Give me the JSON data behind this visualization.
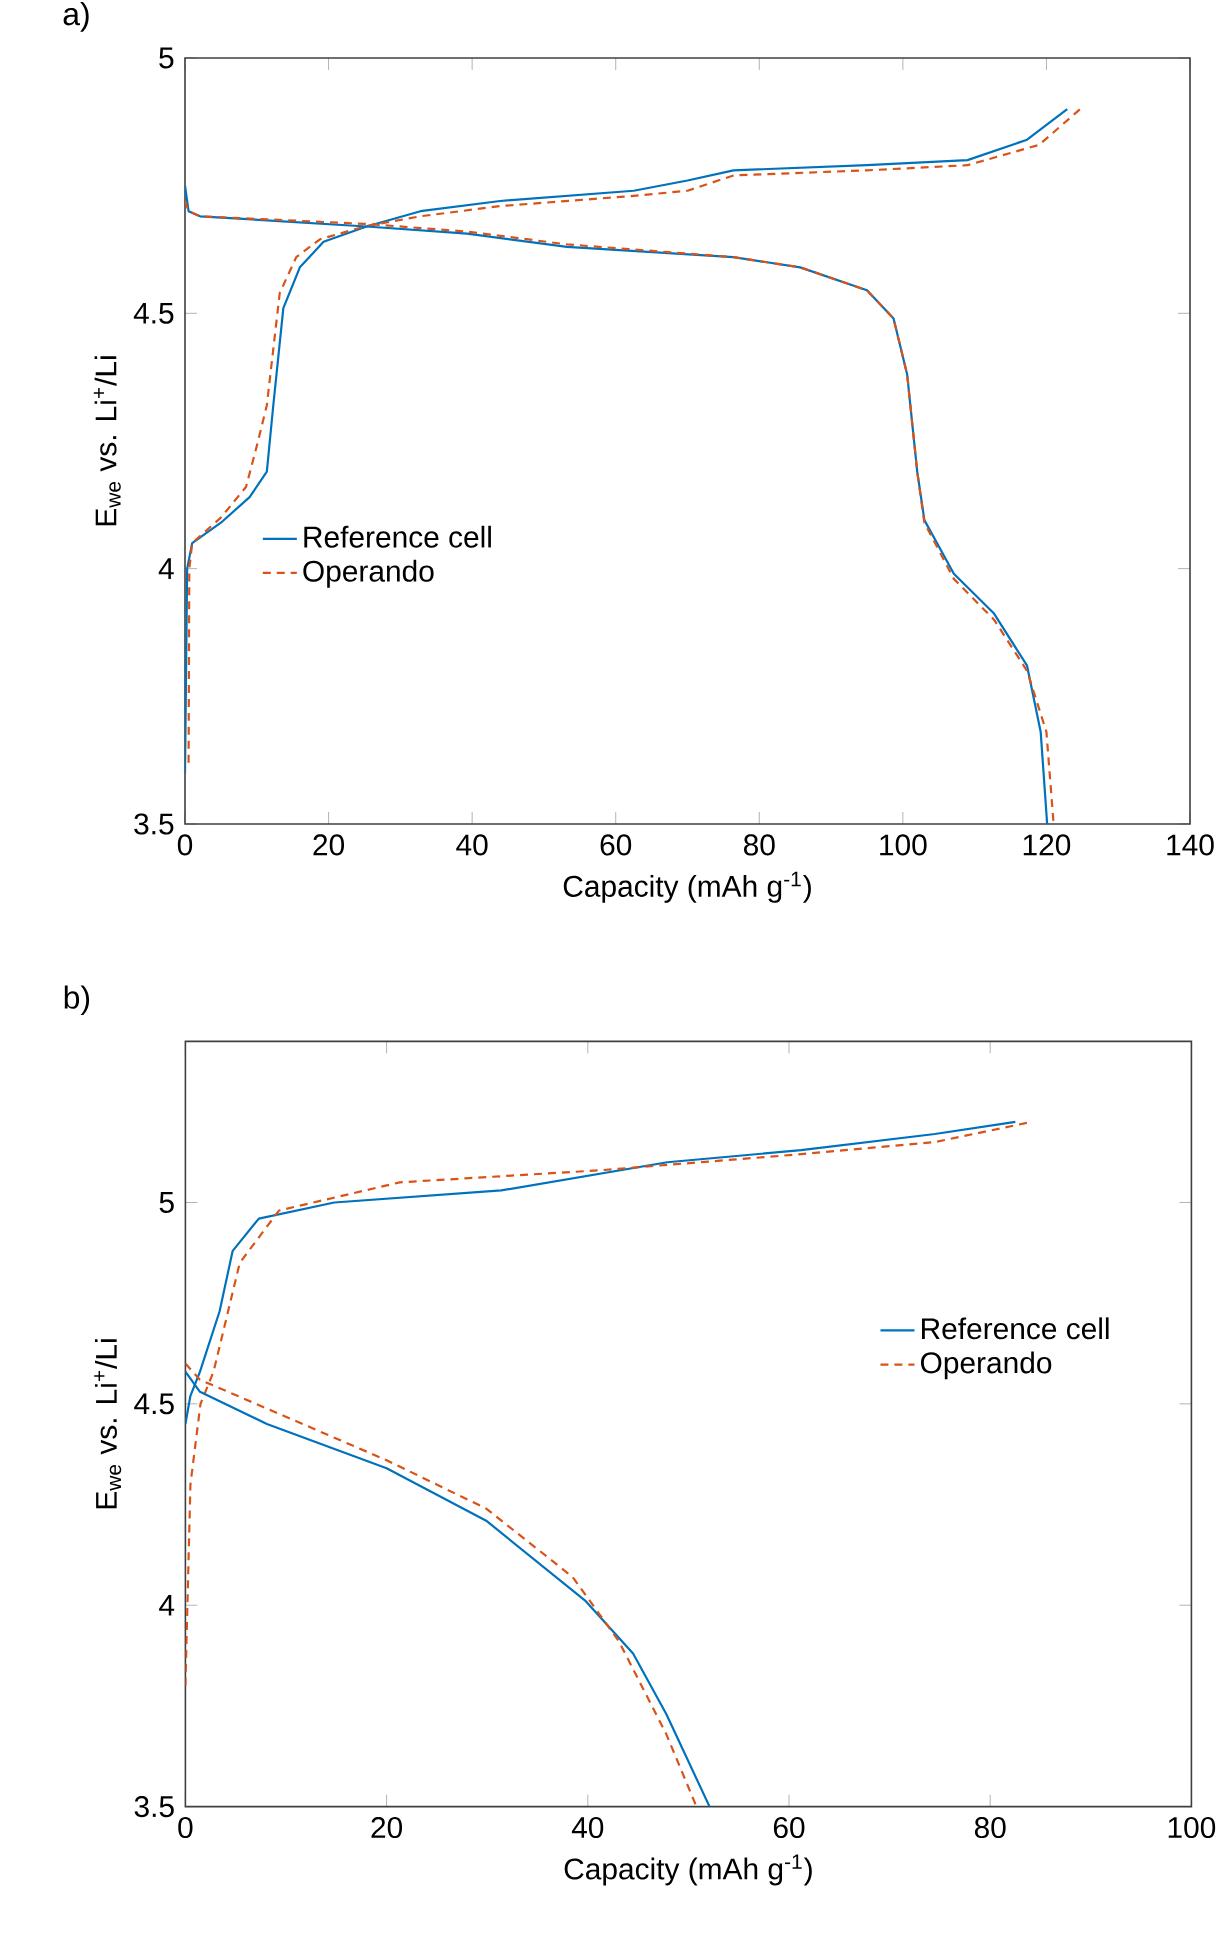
{
  "chart_data": [
    {
      "type": "line",
      "title": "a)",
      "xlabel": "Capacity (mAh g$^{-1}$)",
      "ylabel": "E$_{we}$ vs. Li$^{+}$/Li",
      "xlim": [
        0,
        140
      ],
      "xticks": [
        0,
        20,
        40,
        60,
        80,
        100,
        120,
        140
      ],
      "ylim": [
        3.5,
        5
      ],
      "yticks": [
        3.5,
        4,
        4.5,
        5
      ],
      "legend": "left",
      "grid": false,
      "marker": "none",
      "series": [
        {
          "name": "Reference cell",
          "color": "#0072bd",
          "line_style": "solid",
          "x": [
            0,
            0.3,
            1,
            5,
            9,
            11.4,
            12.3,
            13.7,
            16,
            19.3,
            25.3,
            32.8,
            43.9,
            62.5,
            70,
            76.4,
            95,
            109,
            117.3,
            122.9
          ],
          "values": [
            3.6,
            4.0,
            4.05,
            4.09,
            4.14,
            4.19,
            4.32,
            4.51,
            4.59,
            4.64,
            4.67,
            4.7,
            4.72,
            4.74,
            4.76,
            4.78,
            4.79,
            4.8,
            4.84,
            4.9
          ]
        },
        {
          "name": "Operando",
          "color": "#d95319",
          "line_style": "dashed",
          "x": [
            0.5,
            0.6,
            1,
            5,
            8.5,
            10,
            11.4,
            13.2,
            15.5,
            18.8,
            25,
            32.8,
            43.9,
            62.5,
            70,
            76.4,
            95,
            109,
            119,
            124.7
          ],
          "values": [
            3.62,
            4.0,
            4.05,
            4.1,
            4.16,
            4.24,
            4.32,
            4.54,
            4.61,
            4.645,
            4.67,
            4.69,
            4.71,
            4.73,
            4.74,
            4.77,
            4.78,
            4.79,
            4.83,
            4.9
          ]
        },
        {
          "color": "#0072bd",
          "line_style": "solid",
          "x": [
            0,
            0.5,
            2.1,
            25.3,
            39.3,
            53.2,
            76.4,
            85.7,
            95,
            98.7,
            100.6,
            102,
            103,
            107.1,
            112.7,
            117.3,
            119.2,
            120.1
          ],
          "values": [
            4.75,
            4.7,
            4.69,
            4.67,
            4.656,
            4.63,
            4.61,
            4.59,
            4.545,
            4.49,
            4.38,
            4.19,
            4.095,
            3.99,
            3.912,
            3.81,
            3.68,
            3.5
          ]
        },
        {
          "color": "#d95319",
          "line_style": "dashed",
          "x": [
            0,
            0.5,
            2.1,
            25.3,
            39.3,
            53.2,
            76.4,
            85.7,
            95,
            98.7,
            100.6,
            102,
            103,
            107.1,
            112.7,
            117.3,
            120,
            121
          ],
          "values": [
            4.72,
            4.7,
            4.69,
            4.675,
            4.66,
            4.635,
            4.61,
            4.59,
            4.545,
            4.49,
            4.38,
            4.19,
            4.09,
            3.98,
            3.9,
            3.8,
            3.68,
            3.5
          ]
        }
      ]
    },
    {
      "type": "line",
      "title": "b)",
      "xlabel": "Capacity (mAh g$^{-1}$)",
      "ylabel": "E$_{we}$ vs. Li$^{+}$/Li",
      "xlim": [
        0,
        100
      ],
      "xticks": [
        0,
        20,
        40,
        60,
        80,
        100
      ],
      "ylim": [
        3.5,
        5.4
      ],
      "yticks": [
        3.5,
        4,
        4.5,
        5
      ],
      "legend": "right",
      "grid": false,
      "marker": "none",
      "series": [
        {
          "name": "Reference cell",
          "color": "#0072bd",
          "line_style": "solid",
          "x": [
            0,
            0.5,
            1.45,
            3.4,
            4.7,
            7.3,
            14.8,
            31.4,
            47.9,
            61.2,
            74.5,
            82.5
          ],
          "values": [
            4.45,
            4.52,
            4.58,
            4.73,
            4.88,
            4.96,
            5.0,
            5.03,
            5.1,
            5.13,
            5.17,
            5.2
          ]
        },
        {
          "name": "Operando",
          "color": "#d95319",
          "line_style": "dashed",
          "x": [
            0,
            0.5,
            1.5,
            2.8,
            5.4,
            9.3,
            21.3,
            41.2,
            61.2,
            74.5,
            84.1
          ],
          "values": [
            3.8,
            4.3,
            4.5,
            4.58,
            4.85,
            4.98,
            5.05,
            5.08,
            5.12,
            5.15,
            5.2
          ]
        },
        {
          "color": "#0072bd",
          "line_style": "solid",
          "x": [
            0,
            1.45,
            8.1,
            20,
            29.9,
            39.8,
            44.5,
            47.8,
            52.1
          ],
          "values": [
            4.58,
            4.53,
            4.45,
            4.34,
            4.21,
            4.01,
            3.88,
            3.73,
            3.5
          ]
        },
        {
          "color": "#d95319",
          "line_style": "dashed",
          "x": [
            0,
            1.45,
            20,
            29.9,
            38.5,
            43.1,
            47.8,
            50.8
          ],
          "values": [
            4.6,
            4.56,
            4.36,
            4.24,
            4.07,
            3.91,
            3.68,
            3.5
          ]
        }
      ]
    }
  ]
}
